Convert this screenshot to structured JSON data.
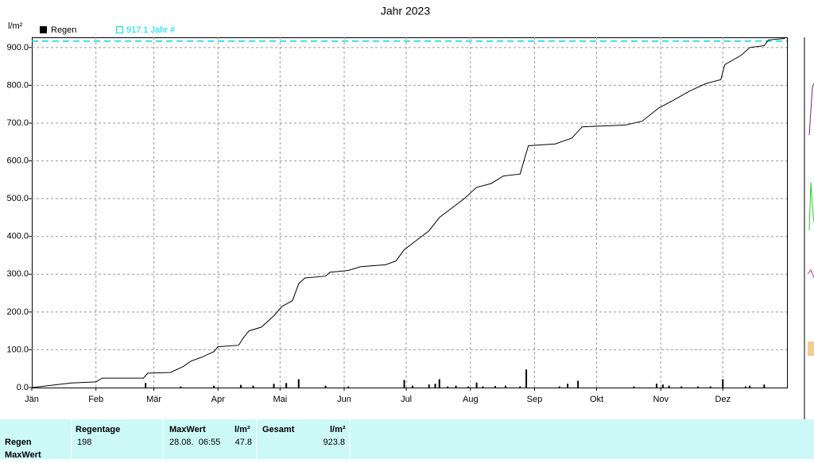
{
  "chart_data": {
    "type": "bar-line",
    "title": "Jahr 2023",
    "y_label": "l/m²",
    "xlim": [
      0,
      365
    ],
    "ylim": [
      0,
      927
    ],
    "grid": true,
    "xticks": [
      {
        "value": 0,
        "label": "Jän"
      },
      {
        "value": 31,
        "label": "Feb"
      },
      {
        "value": 59,
        "label": "Mär"
      },
      {
        "value": 90,
        "label": "Apr"
      },
      {
        "value": 120,
        "label": "Mai"
      },
      {
        "value": 151,
        "label": "Jun"
      },
      {
        "value": 181,
        "label": "Jul"
      },
      {
        "value": 212,
        "label": "Aug"
      },
      {
        "value": 243,
        "label": "Sep"
      },
      {
        "value": 273,
        "label": "Okt"
      },
      {
        "value": 304,
        "label": "Nov"
      },
      {
        "value": 334,
        "label": "Dez"
      }
    ],
    "yticks": [
      {
        "value": 0,
        "label": "0.0"
      },
      {
        "value": 100,
        "label": "100.0"
      },
      {
        "value": 200,
        "label": "200.0"
      },
      {
        "value": 300,
        "label": "300.0"
      },
      {
        "value": 400,
        "label": "400.0"
      },
      {
        "value": 500,
        "label": "500.0"
      },
      {
        "value": 600,
        "label": "600.0"
      },
      {
        "value": 700,
        "label": "700.0"
      },
      {
        "value": 800,
        "label": "800.0"
      },
      {
        "value": 900,
        "label": "900.0"
      }
    ],
    "series": [
      {
        "name": "Regen",
        "color": "#000000",
        "x": [
          55,
          72,
          88,
          101,
          107,
          117,
          123,
          129,
          142,
          153,
          180,
          184,
          192,
          195,
          197,
          201,
          205,
          211,
          215,
          218,
          224,
          229,
          236,
          239,
          255,
          259,
          264,
          291,
          302,
          305,
          308,
          314,
          322,
          328,
          334,
          345,
          347,
          354
        ],
        "values": [
          12,
          3,
          5,
          7,
          5,
          10,
          12,
          22,
          5,
          3,
          20,
          5,
          8,
          10,
          22,
          3,
          5,
          3,
          13,
          3,
          4,
          5,
          3,
          47.8,
          3,
          10,
          18,
          3,
          10,
          8,
          5,
          3,
          3,
          3,
          22,
          3,
          5,
          8
        ]
      }
    ],
    "cumulative": {
      "color": "#000000",
      "x": [
        0,
        8,
        19,
        31,
        34,
        54,
        56,
        67,
        73,
        77,
        82,
        88,
        90,
        100,
        102,
        105,
        111,
        117,
        121,
        126,
        129,
        132,
        142,
        144,
        153,
        159,
        171,
        176,
        180,
        186,
        192,
        197,
        203,
        209,
        215,
        222,
        228,
        236,
        240,
        253,
        261,
        266,
        287,
        295,
        303,
        310,
        318,
        326,
        333,
        335,
        343,
        347,
        354,
        356,
        364
      ],
      "values": [
        0,
        5,
        12,
        15,
        25,
        25,
        38,
        40,
        55,
        70,
        80,
        95,
        108,
        112,
        130,
        150,
        160,
        190,
        215,
        230,
        275,
        290,
        295,
        305,
        310,
        320,
        325,
        335,
        365,
        390,
        415,
        450,
        475,
        500,
        530,
        540,
        560,
        565,
        640,
        645,
        660,
        690,
        695,
        705,
        740,
        760,
        785,
        805,
        815,
        855,
        880,
        900,
        905,
        920,
        923.8
      ]
    },
    "reference": {
      "value": 917.1,
      "label": "917.1 Jahr #",
      "color": "#00d8e0"
    }
  },
  "table": {
    "header": [
      "Regentage",
      "MaxWert",
      "l/m²",
      "Gesamt",
      "l/m²"
    ],
    "rows": [
      [
        "Regen",
        198,
        "28.08.  06:55",
        47.8,
        923.8
      ],
      [
        "MaxWert"
      ]
    ]
  }
}
